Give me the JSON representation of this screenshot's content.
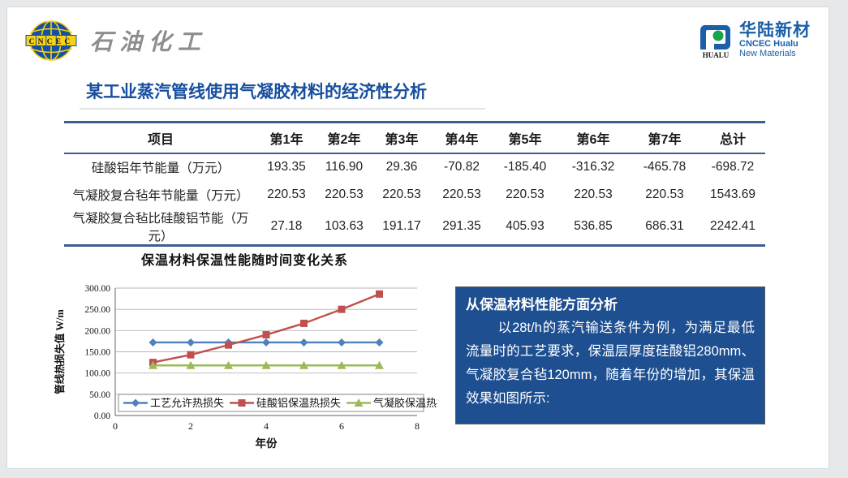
{
  "slide": {
    "logo_left": {
      "badge": "CNCEC",
      "text": "石油化工"
    },
    "logo_right": {
      "mark": "HUALU",
      "name_cn": "华陆新材",
      "name_en1": "CNCEC Hualu",
      "name_en2": "New Materials"
    },
    "title": "某工业蒸汽管线使用气凝胶材料的经济性分析"
  },
  "table": {
    "headers": [
      "项目",
      "第1年",
      "第2年",
      "第3年",
      "第4年",
      "第5年",
      "第6年",
      "第7年",
      "总计"
    ],
    "rows": [
      {
        "label": "硅酸铝年节能量（万元）",
        "values": [
          "193.35",
          "116.90",
          "29.36",
          "-70.82",
          "-185.40",
          "-316.32",
          "-465.78",
          "-698.72"
        ]
      },
      {
        "label": "气凝胶复合毡年节能量（万元）",
        "values": [
          "220.53",
          "220.53",
          "220.53",
          "220.53",
          "220.53",
          "220.53",
          "220.53",
          "1543.69"
        ]
      },
      {
        "label": "气凝胶复合毡比硅酸铝节能（万元）",
        "values": [
          "27.18",
          "103.63",
          "191.17",
          "291.35",
          "405.93",
          "536.85",
          "686.31",
          "2242.41"
        ]
      }
    ],
    "negative_color": "#ff0000"
  },
  "chart_data": {
    "type": "line",
    "title": "保温材料保温性能随时间变化关系",
    "xlabel": "年份",
    "ylabel": "管线热损失值 W/m",
    "x": [
      1,
      2,
      3,
      4,
      5,
      6,
      7
    ],
    "xlim": [
      0,
      8
    ],
    "xticks": [
      0,
      2,
      4,
      6,
      8
    ],
    "ylim": [
      0,
      300
    ],
    "yticks": [
      "0.00",
      "50.00",
      "100.00",
      "150.00",
      "200.00",
      "250.00",
      "300.00"
    ],
    "grid": true,
    "legend_position": "bottom-inside",
    "series": [
      {
        "name": "工艺允许热损失",
        "marker": "diamond",
        "color": "#4f81bd",
        "values": [
          172,
          172,
          172,
          172,
          172,
          172,
          172
        ]
      },
      {
        "name": "硅酸铝保温热损失",
        "marker": "square",
        "color": "#c0504d",
        "values": [
          125,
          143,
          166,
          190,
          217,
          250,
          286
        ]
      },
      {
        "name": "气凝胶保温热损失",
        "marker": "triangle",
        "color": "#9bbb59",
        "values": [
          118,
          118,
          118,
          118,
          118,
          118,
          118
        ]
      }
    ]
  },
  "analysis": {
    "heading": "从保温材料性能方面分析",
    "body": "以28t/h的蒸汽输送条件为例，为满足最低流量时的工艺要求，保温层厚度硅酸铝280mm、气凝胶复合毡120mm，随着年份的增加，其保温效果如图所示:"
  },
  "colors": {
    "title_blue": "#174fa0",
    "table_border": "#3e5c8f",
    "analysis_bg": "#1d4f91",
    "series_blue": "#4f81bd",
    "series_red": "#c0504d",
    "series_green": "#9bbb59"
  }
}
